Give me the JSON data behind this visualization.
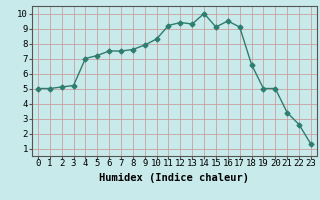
{
  "x": [
    0,
    1,
    2,
    3,
    4,
    5,
    6,
    7,
    8,
    9,
    10,
    11,
    12,
    13,
    14,
    15,
    16,
    17,
    18,
    19,
    20,
    21,
    22,
    23
  ],
  "y": [
    5.0,
    5.0,
    5.1,
    5.2,
    7.0,
    7.2,
    7.5,
    7.5,
    7.6,
    7.9,
    8.3,
    9.2,
    9.4,
    9.3,
    10.0,
    9.1,
    9.5,
    9.1,
    6.6,
    5.0,
    5.0,
    3.4,
    2.6,
    1.3
  ],
  "line_color": "#2e7d6e",
  "marker": "D",
  "marker_size": 2.5,
  "bg_color": "#c8eaea",
  "grid_color": "#c8a0a0",
  "xlabel": "Humidex (Indice chaleur)",
  "xlabel_fontsize": 7.5,
  "xlim": [
    -0.5,
    23.5
  ],
  "ylim": [
    0.5,
    10.5
  ],
  "xtick_labels": [
    "0",
    "1",
    "2",
    "3",
    "4",
    "5",
    "6",
    "7",
    "8",
    "9",
    "10",
    "11",
    "12",
    "13",
    "14",
    "15",
    "16",
    "17",
    "18",
    "19",
    "20",
    "21",
    "22",
    "23"
  ],
  "yticks": [
    1,
    2,
    3,
    4,
    5,
    6,
    7,
    8,
    9,
    10
  ],
  "tick_fontsize": 6.5
}
